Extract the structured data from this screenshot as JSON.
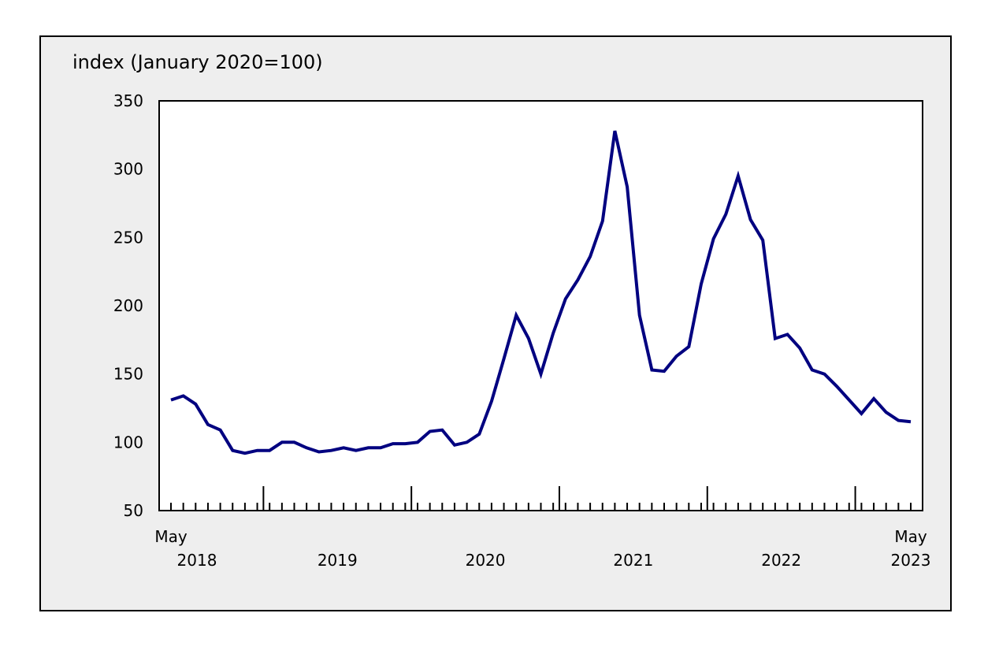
{
  "chart_data": {
    "type": "line",
    "ylabel": "index (January 2020=100)",
    "ylim": [
      50,
      350
    ],
    "yticks": [
      50,
      100,
      150,
      200,
      250,
      300,
      350
    ],
    "grid": false,
    "x_start_label": "May",
    "x_end_label": "May",
    "x_year_labels": [
      "2018",
      "2019",
      "2020",
      "2021",
      "2022",
      "2023"
    ],
    "x": [
      "2018-05",
      "2018-06",
      "2018-07",
      "2018-08",
      "2018-09",
      "2018-10",
      "2018-11",
      "2018-12",
      "2019-01",
      "2019-02",
      "2019-03",
      "2019-04",
      "2019-05",
      "2019-06",
      "2019-07",
      "2019-08",
      "2019-09",
      "2019-10",
      "2019-11",
      "2019-12",
      "2020-01",
      "2020-02",
      "2020-03",
      "2020-04",
      "2020-05",
      "2020-06",
      "2020-07",
      "2020-08",
      "2020-09",
      "2020-10",
      "2020-11",
      "2020-12",
      "2021-01",
      "2021-02",
      "2021-03",
      "2021-04",
      "2021-05",
      "2021-06",
      "2021-07",
      "2021-08",
      "2021-09",
      "2021-10",
      "2021-11",
      "2021-12",
      "2022-01",
      "2022-02",
      "2022-03",
      "2022-04",
      "2022-05",
      "2022-06",
      "2022-07",
      "2022-08",
      "2022-09",
      "2022-10",
      "2022-11",
      "2022-12",
      "2023-01",
      "2023-02",
      "2023-03",
      "2023-04",
      "2023-05"
    ],
    "series": [
      {
        "color": "#000080",
        "values": [
          131,
          134,
          128,
          113,
          109,
          94,
          92,
          94,
          94,
          100,
          100,
          96,
          93,
          94,
          96,
          94,
          96,
          96,
          99,
          99,
          100,
          108,
          109,
          98,
          100,
          106,
          130,
          161,
          193,
          176,
          150,
          180,
          205,
          219,
          236,
          262,
          328,
          287,
          193,
          153,
          152,
          163,
          170,
          216,
          249,
          267,
          295,
          263,
          248,
          176,
          179,
          169,
          153,
          150,
          141,
          131,
          121,
          132,
          122,
          116,
          115
        ]
      }
    ]
  }
}
